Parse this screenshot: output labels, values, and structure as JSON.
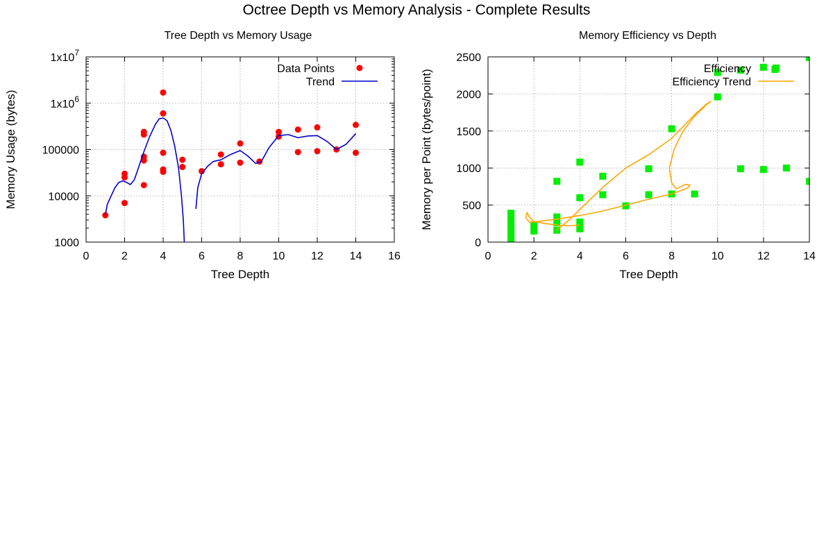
{
  "figure": {
    "title": "Octree Depth vs Memory Analysis - Complete Results"
  },
  "chart_data": [
    {
      "type": "scatter",
      "title": "Tree Depth vs Memory Usage",
      "xlabel": "Tree Depth",
      "ylabel": "Memory Usage (bytes)",
      "xlim": [
        0,
        16
      ],
      "ylim": [
        1000,
        10000000
      ],
      "yscale": "log",
      "grid": true,
      "xticks": [
        0,
        2,
        4,
        6,
        8,
        10,
        12,
        14,
        16
      ],
      "yticks": [
        {
          "value": 1000,
          "label": "1000"
        },
        {
          "value": 10000,
          "label": "10000"
        },
        {
          "value": 100000,
          "label": "100000"
        },
        {
          "value": 1000000,
          "base": "1x10",
          "exp": "6"
        },
        {
          "value": 10000000,
          "base": "1x10",
          "exp": "7"
        }
      ],
      "legend_position": "top-right",
      "series": [
        {
          "name": "Data Points",
          "kind": "points",
          "color": "#ff0000",
          "points": [
            [
              1,
              3800
            ],
            [
              2,
              7000
            ],
            [
              2,
              25000
            ],
            [
              2,
              30000
            ],
            [
              3,
              17000
            ],
            [
              3,
              58000
            ],
            [
              3,
              70000
            ],
            [
              3,
              210000
            ],
            [
              3,
              240000
            ],
            [
              4,
              33000
            ],
            [
              4,
              37000
            ],
            [
              4,
              85000
            ],
            [
              4,
              600000
            ],
            [
              4,
              1700000
            ],
            [
              5,
              42000
            ],
            [
              5,
              60000
            ],
            [
              6,
              34000
            ],
            [
              7,
              48000
            ],
            [
              7,
              78000
            ],
            [
              8,
              52000
            ],
            [
              8,
              135000
            ],
            [
              9,
              55000
            ],
            [
              10,
              190000
            ],
            [
              10,
              240000
            ],
            [
              11,
              88000
            ],
            [
              11,
              270000
            ],
            [
              12,
              92000
            ],
            [
              12,
              300000
            ],
            [
              13,
              100000
            ],
            [
              14,
              85000
            ],
            [
              14,
              340000
            ]
          ]
        },
        {
          "name": "Trend",
          "kind": "line",
          "color": "#0000cc",
          "segments": [
            [
              [
                1,
                3800
              ],
              [
                1.1,
                6500
              ],
              [
                1.3,
                10000
              ],
              [
                1.5,
                15000
              ],
              [
                1.7,
                19500
              ],
              [
                1.9,
                21000
              ],
              [
                2.1,
                19500
              ],
              [
                2.3,
                17500
              ],
              [
                2.5,
                22000
              ],
              [
                2.7,
                38000
              ],
              [
                3,
                90000
              ],
              [
                3.3,
                190000
              ],
              [
                3.6,
                350000
              ],
              [
                3.8,
                460000
              ],
              [
                4,
                480000
              ],
              [
                4.2,
                420000
              ],
              [
                4.4,
                260000
              ],
              [
                4.6,
                120000
              ],
              [
                4.8,
                40000
              ],
              [
                4.95,
                10000
              ],
              [
                5.05,
                3000
              ],
              [
                5.1,
                1000
              ]
            ],
            [
              [
                5.7,
                5200
              ],
              [
                5.8,
                15000
              ],
              [
                6,
                30000
              ],
              [
                6.3,
                43000
              ],
              [
                6.6,
                55000
              ],
              [
                7,
                60000
              ],
              [
                7.5,
                78000
              ],
              [
                8,
                95000
              ],
              [
                8.4,
                72000
              ],
              [
                8.8,
                50000
              ],
              [
                9.1,
                55000
              ],
              [
                9.5,
                110000
              ],
              [
                10,
                200000
              ],
              [
                10.5,
                210000
              ],
              [
                11,
                180000
              ],
              [
                11.5,
                195000
              ],
              [
                12,
                200000
              ],
              [
                12.5,
                150000
              ],
              [
                13,
                100000
              ],
              [
                13.5,
                130000
              ],
              [
                14,
                220000
              ]
            ]
          ]
        }
      ]
    },
    {
      "type": "scatter",
      "title": "Memory Efficiency vs Depth",
      "xlabel": "Tree Depth",
      "ylabel": "Memory per Point (bytes/point)",
      "xlim": [
        0,
        14
      ],
      "ylim": [
        0,
        2500
      ],
      "grid": true,
      "xticks": [
        0,
        2,
        4,
        6,
        8,
        10,
        12,
        14
      ],
      "yticks": [
        {
          "value": 0,
          "label": "0"
        },
        {
          "value": 500,
          "label": "500"
        },
        {
          "value": 1000,
          "label": "1000"
        },
        {
          "value": 1500,
          "label": "1500"
        },
        {
          "value": 2000,
          "label": "2000"
        },
        {
          "value": 2500,
          "label": "2500"
        }
      ],
      "legend_position": "top-right",
      "series": [
        {
          "name": "Efficiency",
          "kind": "points",
          "color": "#00ee00",
          "points": [
            [
              1,
              40
            ],
            [
              1,
              100
            ],
            [
              1,
              180
            ],
            [
              1,
              260
            ],
            [
              1,
              340
            ],
            [
              1,
              390
            ],
            [
              2,
              150
            ],
            [
              2,
              220
            ],
            [
              3,
              160
            ],
            [
              3,
              260
            ],
            [
              3,
              340
            ],
            [
              3,
              820
            ],
            [
              4,
              180
            ],
            [
              4,
              270
            ],
            [
              4,
              600
            ],
            [
              4,
              1080
            ],
            [
              5,
              640
            ],
            [
              5,
              890
            ],
            [
              6,
              490
            ],
            [
              7,
              640
            ],
            [
              7,
              990
            ],
            [
              8,
              650
            ],
            [
              8,
              1530
            ],
            [
              9,
              650
            ],
            [
              10,
              1960
            ],
            [
              10,
              2290
            ],
            [
              11,
              990
            ],
            [
              11,
              2320
            ],
            [
              12,
              980
            ],
            [
              12,
              2360
            ],
            [
              12.5,
              2330
            ],
            [
              13,
              1000
            ],
            [
              14,
              820
            ],
            [
              14,
              2490
            ]
          ]
        },
        {
          "name": "Efficiency Trend",
          "kind": "line",
          "color": "#ffa500",
          "segments": [
            [
              [
                4,
                230
              ],
              [
                3.5,
                220
              ],
              [
                3,
                230
              ],
              [
                2.5,
                250
              ],
              [
                2,
                280
              ],
              [
                1.8,
                340
              ],
              [
                1.7,
                400
              ],
              [
                1.65,
                330
              ],
              [
                1.8,
                270
              ],
              [
                2.2,
                280
              ],
              [
                3,
                310
              ],
              [
                4,
                360
              ],
              [
                5,
                420
              ],
              [
                6,
                500
              ],
              [
                7,
                580
              ],
              [
                8,
                650
              ],
              [
                8.7,
                730
              ],
              [
                8.8,
                770
              ],
              [
                8.6,
                780
              ],
              [
                8.2,
                720
              ],
              [
                8,
                800
              ],
              [
                7.9,
                1000
              ],
              [
                8.1,
                1250
              ],
              [
                8.5,
                1500
              ],
              [
                9,
                1700
              ],
              [
                9.5,
                1850
              ],
              [
                9.7,
                1900
              ],
              [
                9.5,
                1860
              ],
              [
                9,
                1720
              ],
              [
                8,
                1400
              ],
              [
                7,
                1180
              ],
              [
                6,
                1000
              ],
              [
                5,
                740
              ],
              [
                4,
                440
              ],
              [
                3.5,
                290
              ],
              [
                3,
                160
              ]
            ]
          ]
        }
      ]
    }
  ]
}
